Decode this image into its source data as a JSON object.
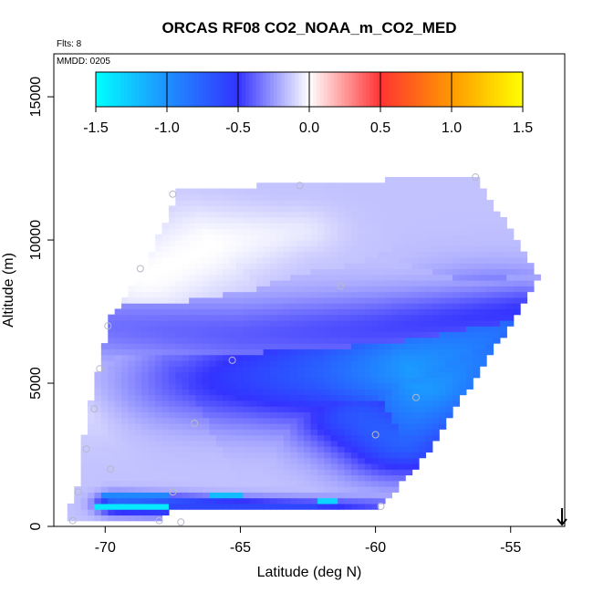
{
  "chart_data": {
    "type": "heatmap",
    "title": "ORCAS RF08 CO2_NOAA_m_CO2_MED",
    "annotations": {
      "flights": "Flts: 8",
      "date": "MMDD: 0205"
    },
    "xlabel": "Latitude (deg N)",
    "ylabel": "Altitude (m)",
    "xlim": [
      -71.9,
      -53.0
    ],
    "ylim": [
      0,
      16500
    ],
    "x_ticks": [
      -70,
      -65,
      -60,
      -55
    ],
    "y_ticks": [
      0,
      5000,
      10000,
      15000
    ],
    "x_tick_labels": [
      "-70",
      "-65",
      "-60",
      "-55"
    ],
    "y_tick_labels": [
      "0",
      "5000",
      "10000",
      "15000"
    ],
    "colorbar": {
      "range": [
        -1.5,
        1.5
      ],
      "ticks": [
        -1.5,
        -1.0,
        -0.5,
        0.0,
        0.5,
        1.0,
        1.5
      ],
      "tick_labels": [
        "-1.5",
        "-1.0",
        "-0.5",
        "0.0",
        "0.5",
        "1.0",
        "1.5"
      ],
      "colors": [
        "#00ffff",
        "#1e90ff",
        "#3333ff",
        "#ffffff",
        "#ff3333",
        "#ff9900",
        "#ffff00"
      ]
    },
    "domain_outline": [
      [
        -71.0,
        1400
      ],
      [
        -71.5,
        200
      ],
      [
        -67.9,
        200
      ],
      [
        -67.4,
        600
      ],
      [
        -60.0,
        600
      ],
      [
        -58.5,
        2000
      ],
      [
        -53.9,
        8700
      ],
      [
        -56.3,
        12200
      ],
      [
        -62.8,
        12000
      ],
      [
        -67.3,
        11700
      ],
      [
        -68.6,
        8900
      ],
      [
        -69.8,
        7300
      ],
      [
        -70.6,
        4200
      ],
      [
        -70.9,
        2500
      ]
    ],
    "field_features": [
      {
        "name": "core",
        "points": [
          [
            -70.8,
            4200
          ],
          [
            -67.0,
            5000
          ],
          [
            -62.0,
            5400
          ],
          [
            -58.8,
            5500
          ],
          [
            -55.5,
            6600
          ]
        ],
        "values": [
          -0.1,
          -0.45,
          -0.75,
          -1.05,
          -0.85
        ],
        "width_m": [
          900,
          1100,
          1300,
          1500,
          1200
        ]
      },
      {
        "name": "wedge",
        "points": [
          [
            -60.5,
            3800
          ],
          [
            -59.0,
            3000
          ],
          [
            -58.2,
            4800
          ],
          [
            -57.0,
            5600
          ],
          [
            -55.2,
            6600
          ]
        ],
        "values": [
          -0.7,
          -0.75,
          -1.05,
          -0.95,
          -0.8
        ],
        "width_m": [
          900,
          900,
          1200,
          1100,
          900
        ]
      },
      {
        "name": "upper-band",
        "points": [
          [
            -69.9,
            7000
          ],
          [
            -65.0,
            6700
          ],
          [
            -60.0,
            6900
          ],
          [
            -54.6,
            7500
          ]
        ],
        "values": [
          -0.35,
          -0.4,
          -0.45,
          -0.5
        ],
        "width_m": [
          800,
          900,
          900,
          700
        ]
      },
      {
        "name": "white-top",
        "points": [
          [
            -68.4,
            8700
          ],
          [
            -66.0,
            9900
          ],
          [
            -63.0,
            10300
          ]
        ],
        "values": [
          0.0,
          0.0,
          -0.05
        ],
        "width_m": [
          900,
          1000,
          600
        ]
      },
      {
        "name": "low-layer",
        "points": [
          [
            -69.6,
            800
          ],
          [
            -67.8,
            750
          ],
          [
            -66.0,
            700
          ],
          [
            -63.0,
            650
          ],
          [
            -59.5,
            700
          ]
        ],
        "values": [
          -0.85,
          -0.8,
          -0.7,
          -0.6,
          -0.4
        ],
        "width_m": [
          250,
          250,
          250,
          250,
          250
        ]
      }
    ],
    "low_level_bands": [
      {
        "x0": -70.3,
        "x1": -67.6,
        "y0": 580,
        "y1": 820,
        "value": -1.4
      },
      {
        "x0": -67.6,
        "x1": -62.2,
        "y0": 580,
        "y1": 820,
        "value": -0.6
      },
      {
        "x0": -62.2,
        "x1": -61.4,
        "y0": 780,
        "y1": 1000,
        "value": -1.3
      },
      {
        "x0": -70.2,
        "x1": -67.6,
        "y0": 1000,
        "y1": 1200,
        "value": -0.95
      },
      {
        "x0": -66.2,
        "x1": -64.8,
        "y0": 1050,
        "y1": 1250,
        "value": -1.2
      }
    ],
    "sample_points": [
      [
        -67.5,
        11600
      ],
      [
        -62.8,
        11900
      ],
      [
        -56.3,
        12200
      ],
      [
        -68.7,
        9000
      ],
      [
        -61.3,
        8400
      ],
      [
        -69.9,
        7000
      ],
      [
        -65.3,
        5800
      ],
      [
        -70.2,
        5500
      ],
      [
        -58.5,
        4500
      ],
      [
        -70.4,
        4100
      ],
      [
        -66.7,
        3600
      ],
      [
        -60.0,
        3200
      ],
      [
        -70.7,
        2700
      ],
      [
        -69.8,
        2000
      ],
      [
        -71.0,
        1200
      ],
      [
        -67.5,
        1200
      ],
      [
        -59.8,
        700
      ],
      [
        -71.2,
        200
      ],
      [
        -68.0,
        200
      ],
      [
        -67.2,
        150
      ]
    ],
    "markers": [
      {
        "type": "arrow-down",
        "x": -53.1
      }
    ],
    "grid": false,
    "legend": "colorbar-top"
  }
}
